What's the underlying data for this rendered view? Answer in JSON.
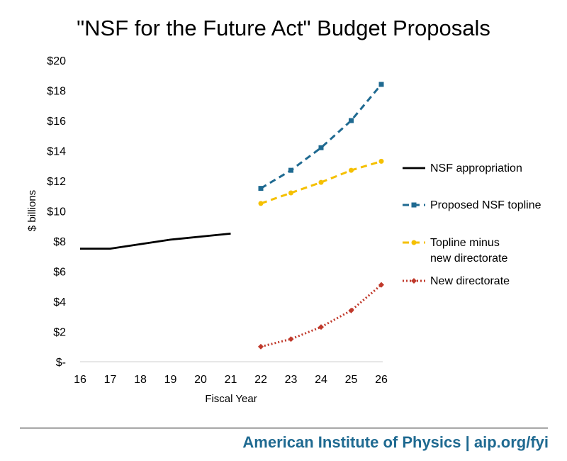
{
  "footer": {
    "text": "American Institute of Physics | aip.org/fyi"
  },
  "chart_data": {
    "type": "line",
    "title": "\"NSF for the Future Act\" Budget Proposals",
    "xlabel": "Fiscal Year",
    "ylabel": "$ billions",
    "categories": [
      "16",
      "17",
      "18",
      "19",
      "20",
      "21",
      "22",
      "23",
      "24",
      "25",
      "26"
    ],
    "ylim": [
      0,
      20
    ],
    "yticks": [
      0,
      2,
      4,
      6,
      8,
      10,
      12,
      14,
      16,
      18,
      20
    ],
    "ytick_labels": [
      "$-",
      "$2",
      "$4",
      "$6",
      "$8",
      "$10",
      "$12",
      "$14",
      "$16",
      "$18",
      "$20"
    ],
    "grid": false,
    "legend_position": "right",
    "series": [
      {
        "name": "NSF appropriation",
        "color": "#000000",
        "dash": "solid",
        "marker": "none",
        "values": [
          7.5,
          7.5,
          7.8,
          8.1,
          8.3,
          8.5,
          null,
          null,
          null,
          null,
          null
        ]
      },
      {
        "name": "Proposed NSF topline",
        "color": "#1f6a91",
        "dash": "dashed",
        "marker": "square",
        "values": [
          null,
          null,
          null,
          null,
          null,
          null,
          11.5,
          12.7,
          14.2,
          16.0,
          18.4
        ]
      },
      {
        "name": "Topline minus new directorate",
        "legend_lines": [
          "Topline minus",
          "new directorate"
        ],
        "color": "#f5c000",
        "dash": "dashed",
        "marker": "circle",
        "values": [
          null,
          null,
          null,
          null,
          null,
          null,
          10.5,
          11.2,
          11.9,
          12.7,
          13.3
        ]
      },
      {
        "name": "New directorate",
        "color": "#c0392b",
        "dash": "dotted",
        "marker": "diamond",
        "values": [
          null,
          null,
          null,
          null,
          null,
          null,
          1.0,
          1.5,
          2.3,
          3.4,
          5.1
        ]
      }
    ]
  }
}
